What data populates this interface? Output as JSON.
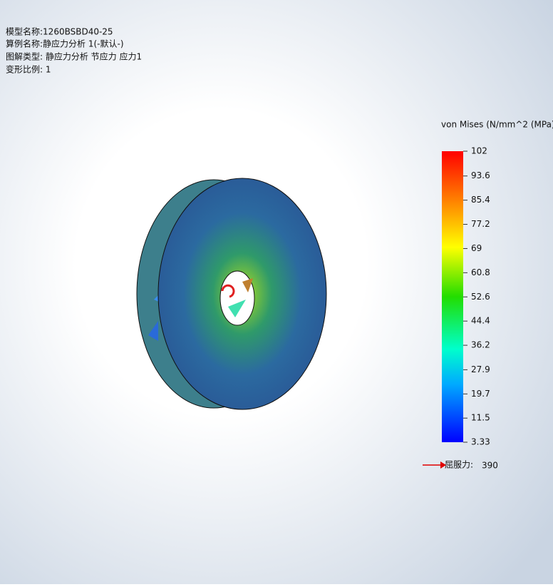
{
  "header": {
    "lines": [
      "模型名称:1260BSBD40-25",
      "算例名称:静应力分析 1(-默认-)",
      "图解类型: 静应力分析 节应力 应力1",
      "变形比例: 1"
    ]
  },
  "legend": {
    "title": "von Mises (N/mm^2 (MPa))",
    "range": [
      3.33,
      102
    ],
    "ticks": [
      102,
      93.6,
      85.4,
      77.2,
      69,
      60.8,
      52.6,
      44.4,
      36.2,
      27.9,
      19.7,
      11.5,
      3.33
    ]
  },
  "yield": {
    "label": "屈服力:",
    "value": 390
  }
}
